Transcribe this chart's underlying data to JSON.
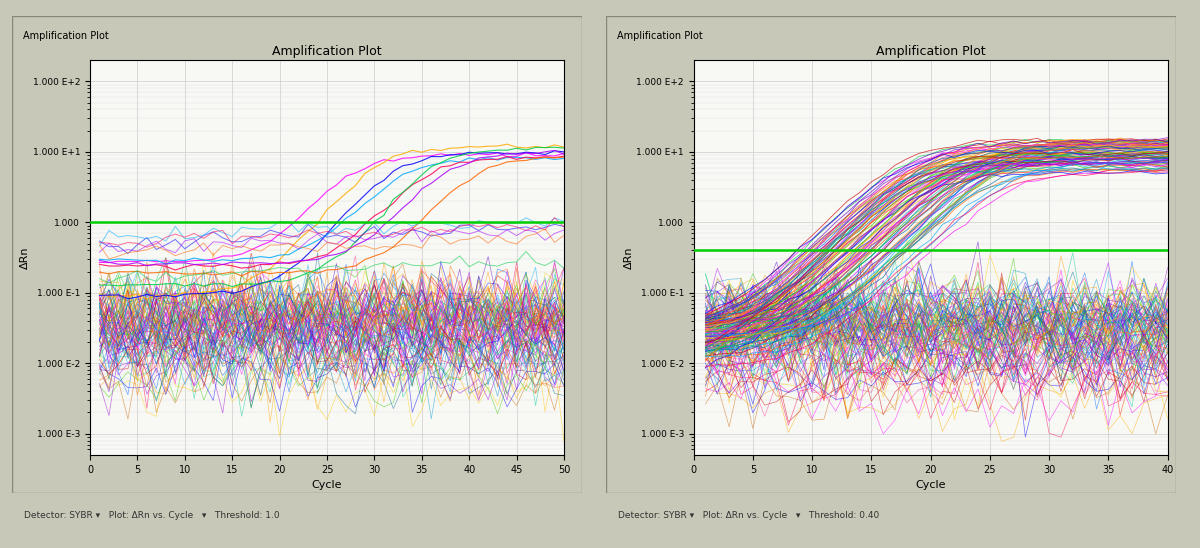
{
  "left_panel": {
    "title": "Amplification Plot",
    "xlabel": "Cycle",
    "ylabel": "ΔRn",
    "xlim": [
      0,
      50
    ],
    "ylim_log": [
      -3.3,
      2.3
    ],
    "x_ticks": [
      0,
      5,
      10,
      15,
      20,
      25,
      30,
      35,
      40,
      45,
      50
    ],
    "y_ticks_labels": [
      "1.000 E-3",
      "1.000 E-2",
      "1.000 E-1",
      "1.000",
      "1.000 E+1",
      "1.000 E+2"
    ],
    "y_ticks_vals": [
      0.001,
      0.01,
      0.1,
      1.0,
      10.0,
      100.0
    ],
    "threshold": 1.0,
    "threshold_color": "#00cc00",
    "n_noise_lines": 90,
    "n_amplify_lines": 8,
    "amplify_start_cycles": [
      28,
      30,
      32,
      33,
      35,
      36,
      38,
      40
    ],
    "footer": "Detector: SYBR    Plot: ΔRn vs. Cycle    Threshold: 1.0"
  },
  "right_panel": {
    "title": "Amplification Plot",
    "xlabel": "Cycle",
    "ylabel": "ΔRn",
    "xlim": [
      0,
      40
    ],
    "ylim_log": [
      -3.3,
      2.3
    ],
    "x_ticks": [
      0,
      5,
      10,
      15,
      20,
      25,
      30,
      35,
      40
    ],
    "y_ticks_labels": [
      "1.000 E-3",
      "1.000 E-2",
      "1.000 E-1",
      "1.000",
      "1.000 E+1",
      "1.000 E+2"
    ],
    "y_ticks_vals": [
      0.001,
      0.01,
      0.1,
      1.0,
      10.0,
      100.0
    ],
    "threshold": 0.4,
    "threshold_color": "#00cc00",
    "n_noise_lines": 100,
    "n_amplify_lines": 90,
    "amplify_start_cycles": [
      18,
      19,
      20,
      21,
      22,
      23,
      24,
      25,
      26
    ],
    "footer": "Detector: SYBR    Plot: ΔRn vs. Cycle    Threshold: 0.40"
  },
  "colors": [
    "#ff00ff",
    "#ffaa00",
    "#0000ff",
    "#00aaff",
    "#ff0055",
    "#00cc44",
    "#aa00ff",
    "#ff6600",
    "#006699",
    "#cc0000",
    "#00cc99",
    "#9900cc",
    "#ffcc00",
    "#0066ff",
    "#ff3399",
    "#33cc00",
    "#ff9900",
    "#0099cc",
    "#cc6600",
    "#6600cc"
  ],
  "window_bg": "#c8c8b8",
  "panel_bg": "#d0d0c0",
  "plot_bg": "#f8f8f5",
  "border_color": "#888877"
}
